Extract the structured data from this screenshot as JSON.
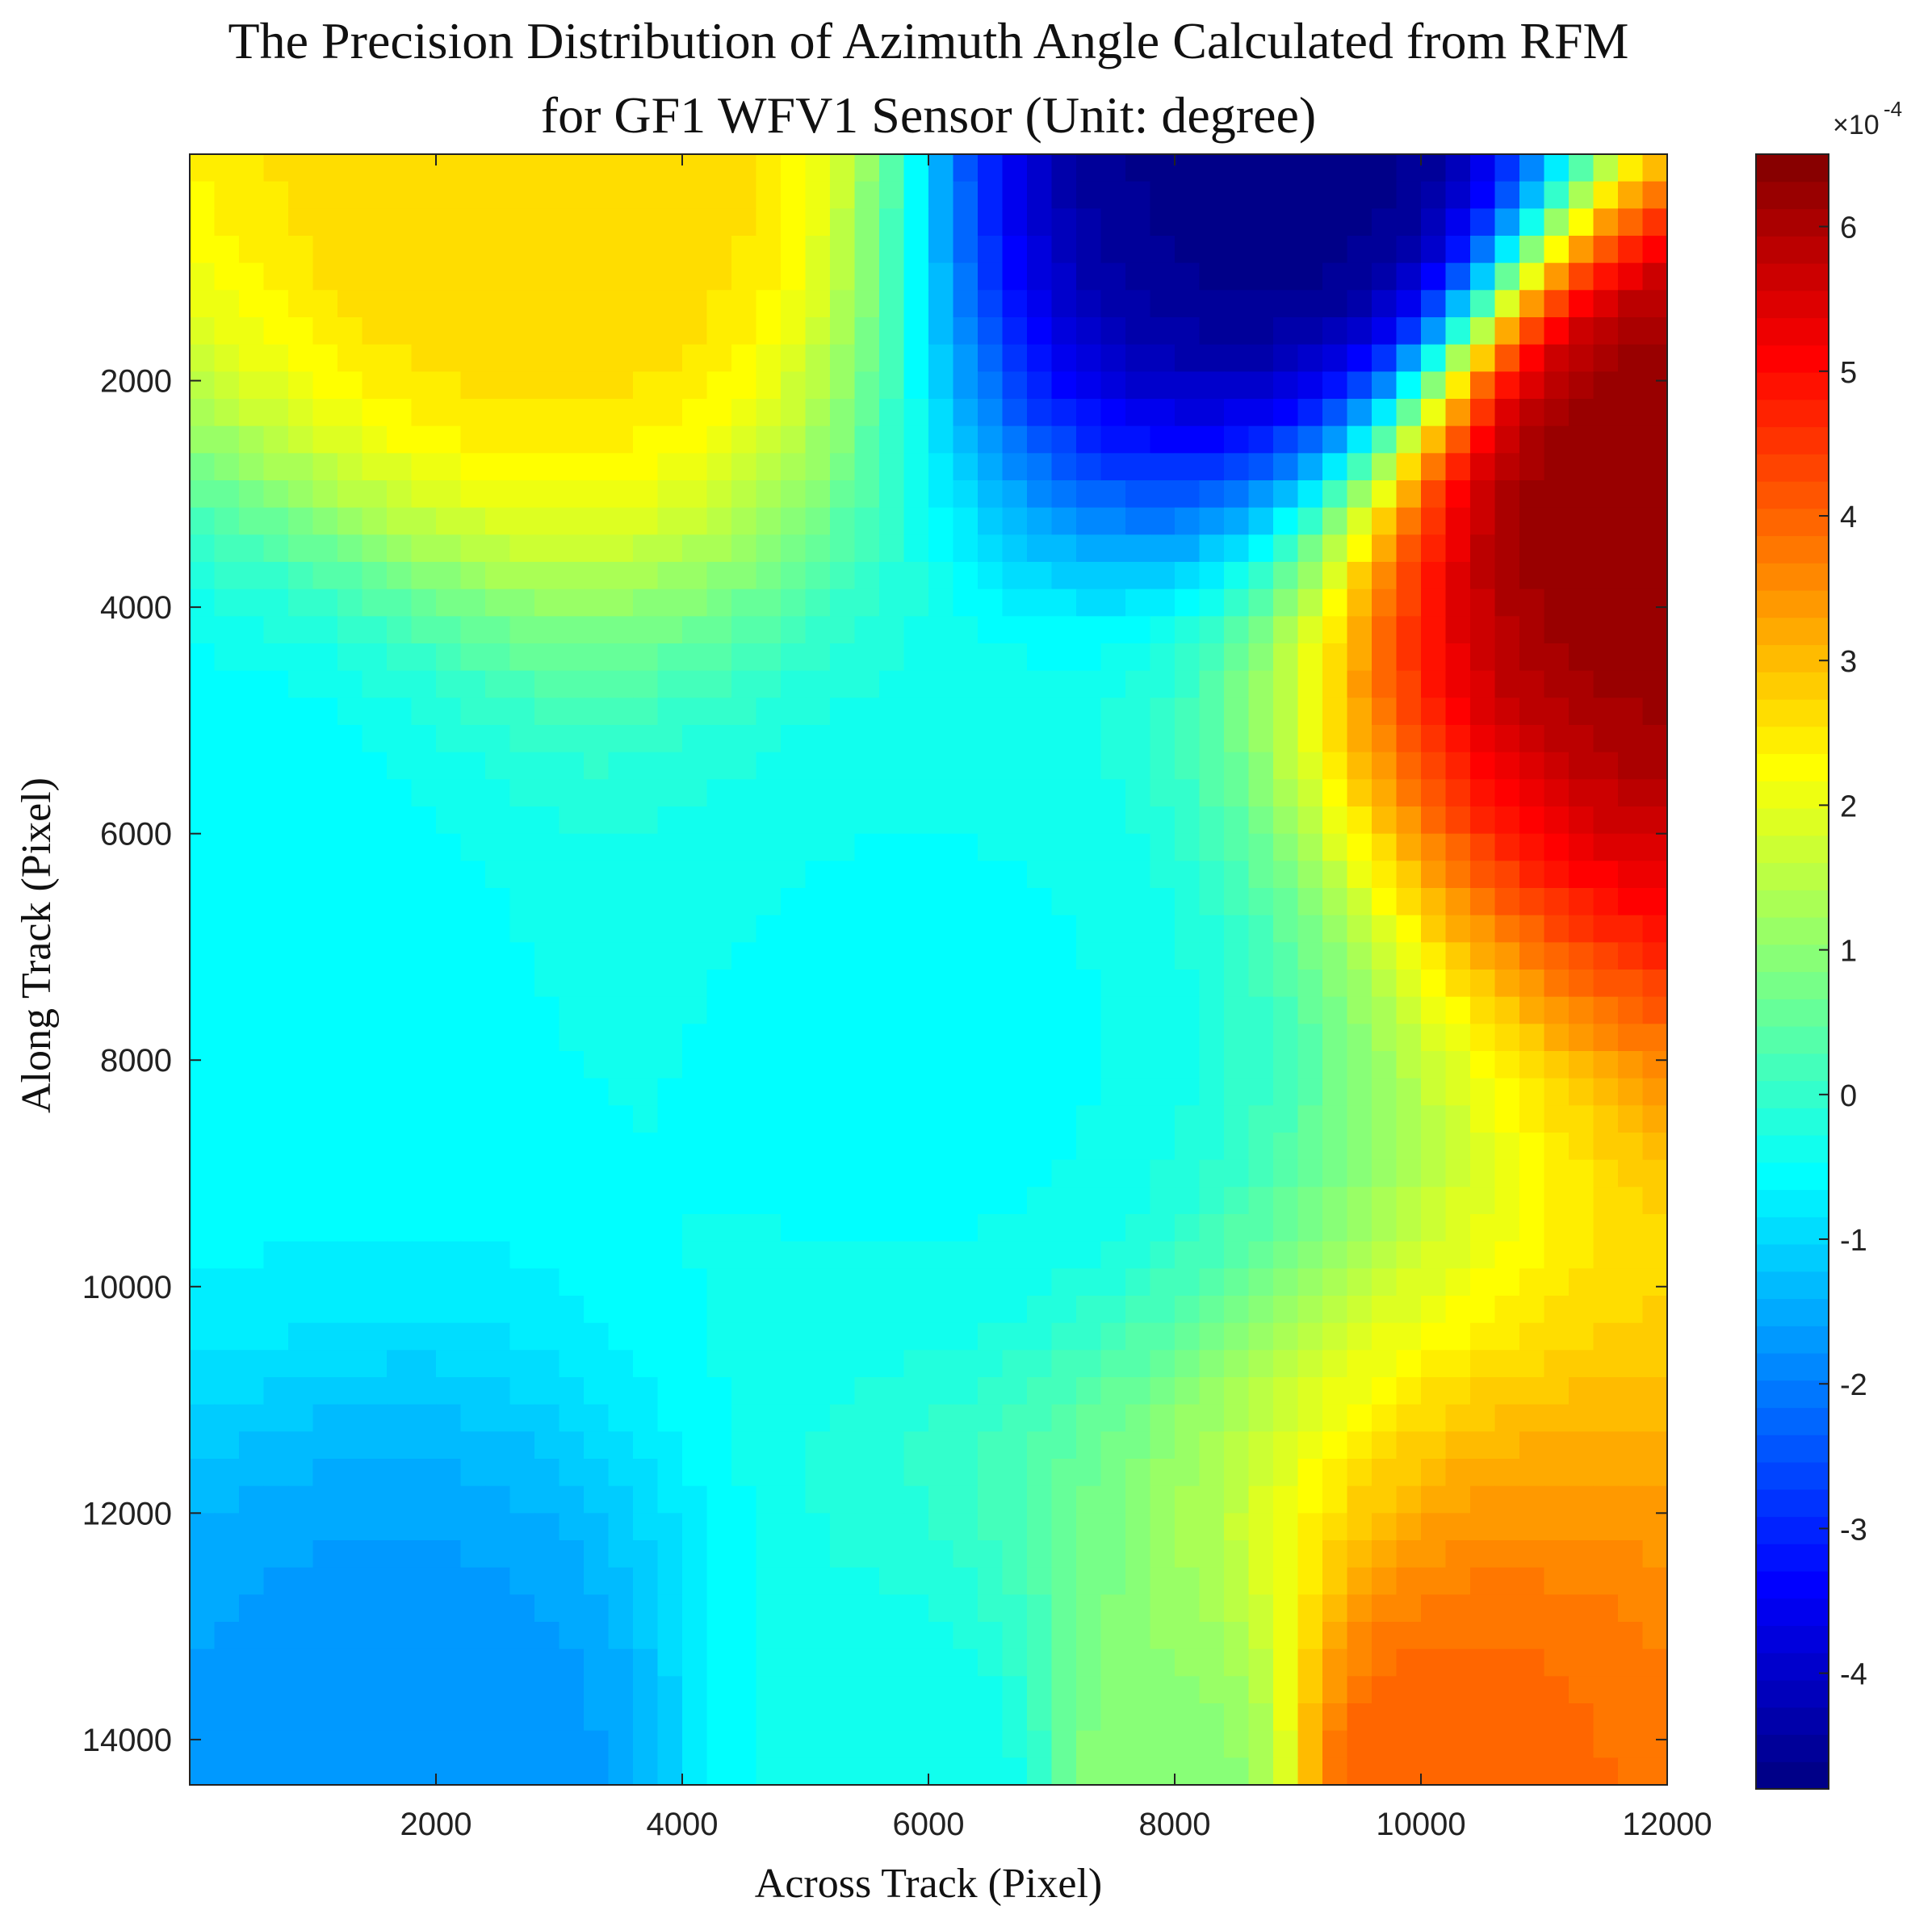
{
  "chart_data": {
    "type": "heatmap",
    "style": "filled-contour",
    "title_lines": [
      "The Precision Distribution of Azimuth Angle Calculated from RFM",
      "for GF1 WFV1 Sensor (Unit: degree)"
    ],
    "xlabel": "Across Track (Pixel)",
    "ylabel": "Along Track (Pixel)",
    "xlim": [
      0,
      12000
    ],
    "ylim": [
      0,
      14400
    ],
    "y_reversed": true,
    "x_ticks": [
      2000,
      4000,
      6000,
      8000,
      10000,
      12000
    ],
    "x_tick_labels": [
      "2000",
      "4000",
      "6000",
      "8000",
      "10000",
      "12000"
    ],
    "y_ticks": [
      2000,
      4000,
      6000,
      8000,
      10000,
      12000,
      14000
    ],
    "y_tick_labels": [
      "2000",
      "4000",
      "6000",
      "8000",
      "10000",
      "12000",
      "14000"
    ],
    "grid": false,
    "colormap": "jet",
    "colorbar": {
      "position": "right",
      "multiplier_label": "×10",
      "multiplier_exponent": "-4",
      "range": [
        -4.8,
        6.5
      ],
      "ticks": [
        -4,
        -3,
        -2,
        -1,
        0,
        1,
        2,
        3,
        4,
        5,
        6
      ],
      "tick_labels": [
        "-4",
        "-3",
        "-2",
        "-1",
        "0",
        "1",
        "2",
        "3",
        "4",
        "5",
        "6"
      ]
    },
    "approx_field_features_e-4": [
      {
        "feature": "maximum",
        "x": 12000,
        "y": 3000,
        "value": 6.3
      },
      {
        "feature": "local maximum",
        "x": 3000,
        "y": 0,
        "value": 2.7
      },
      {
        "feature": "minimum",
        "x": 8900,
        "y": 0,
        "value": -4.7
      },
      {
        "feature": "local minimum",
        "x": 2000,
        "y": 14400,
        "value": -1.7
      },
      {
        "feature": "value",
        "x": 0,
        "y": 7000,
        "value": -0.6
      },
      {
        "feature": "value",
        "x": 6000,
        "y": 8000,
        "value": -0.5
      },
      {
        "feature": "value",
        "x": 6000,
        "y": 14400,
        "value": -0.4
      },
      {
        "feature": "value",
        "x": 8000,
        "y": 14400,
        "value": 1.0
      },
      {
        "feature": "value",
        "x": 10000,
        "y": 14400,
        "value": 4.0
      }
    ]
  }
}
